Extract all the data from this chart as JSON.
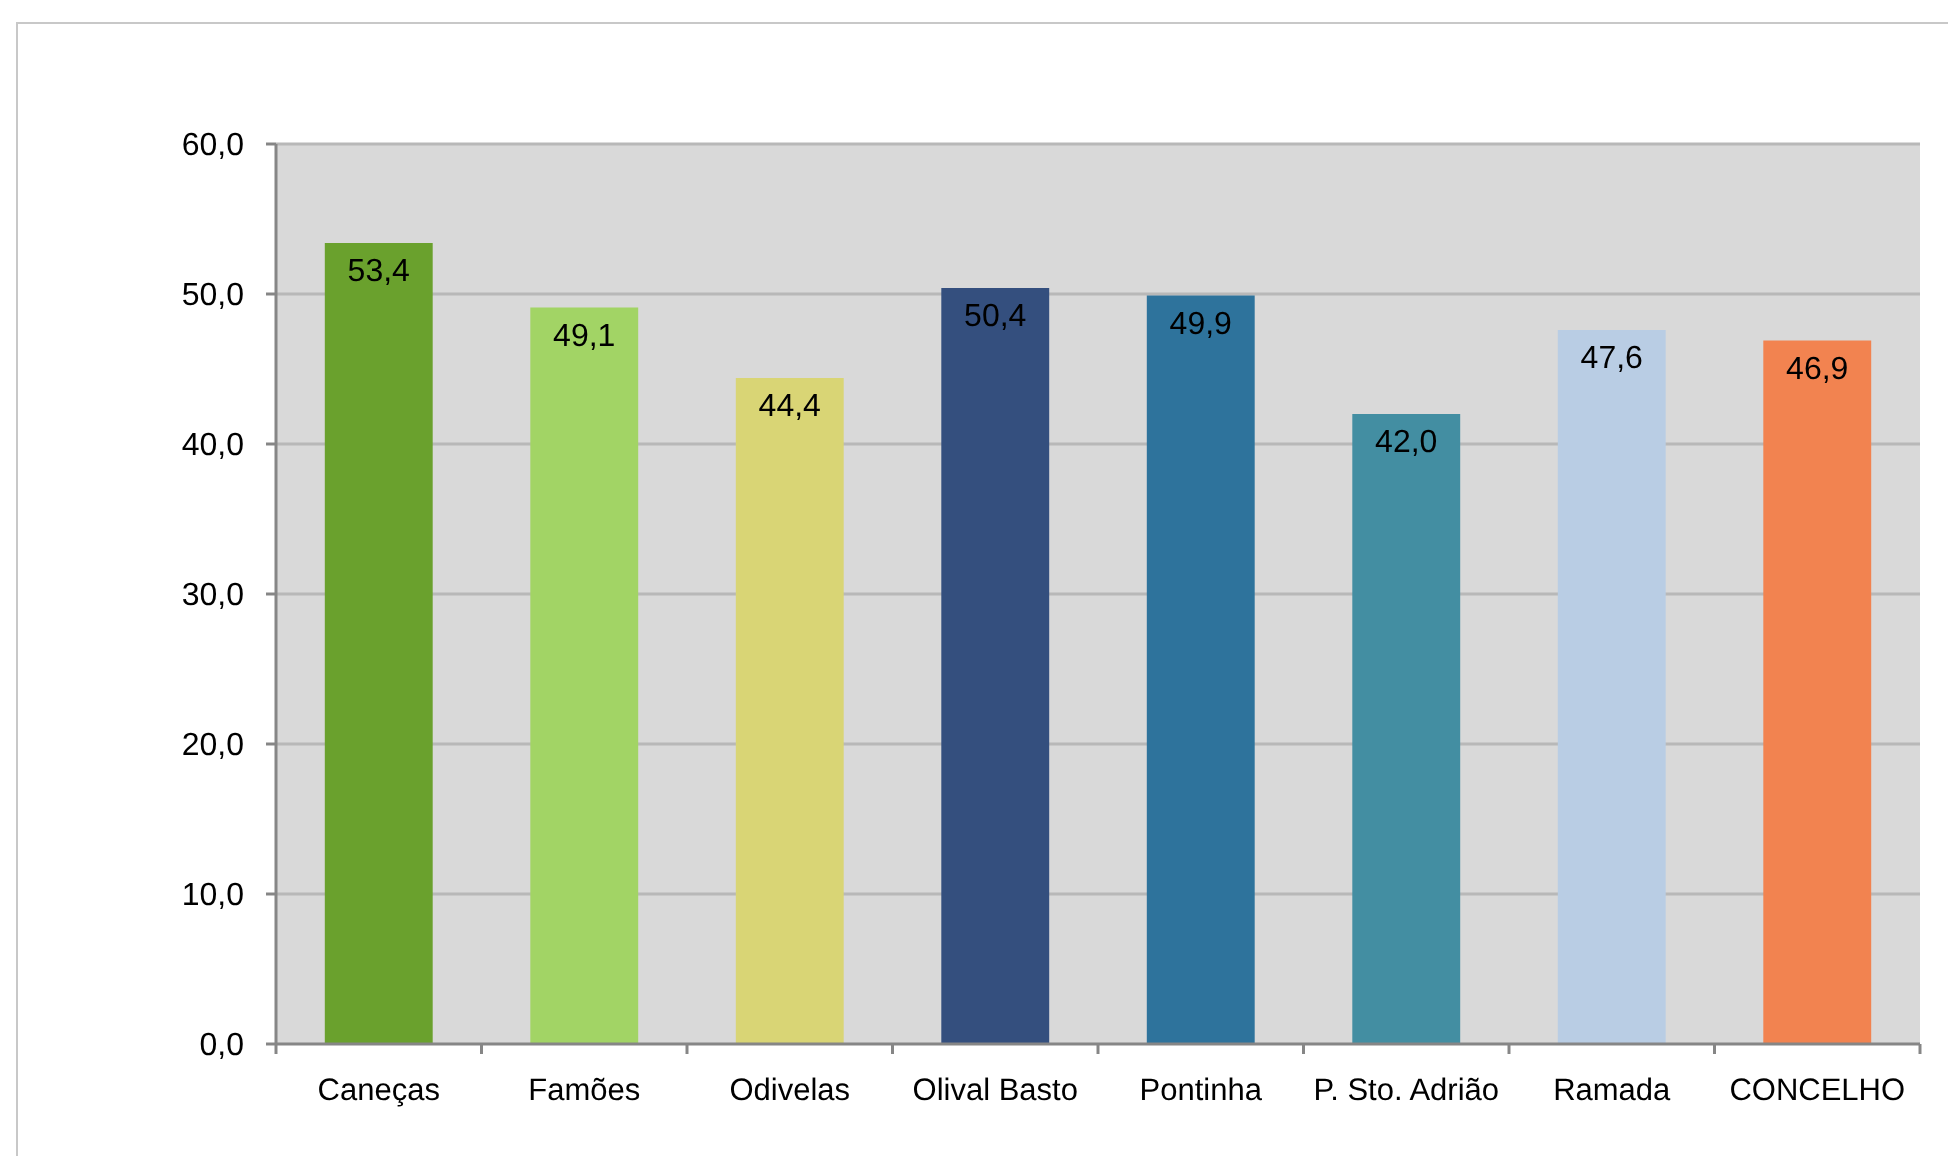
{
  "chart_data": {
    "type": "bar",
    "categories": [
      "Caneças",
      "Famões",
      "Odivelas",
      "Olival Basto",
      "Pontinha",
      "P. Sto. Adrião",
      "Ramada",
      "CONCELHO"
    ],
    "values": [
      53.4,
      49.1,
      44.4,
      50.4,
      49.9,
      42.0,
      47.6,
      46.9
    ],
    "colors": [
      "#6aa12d",
      "#a2d465",
      "#d9d575",
      "#344f7e",
      "#2e739c",
      "#438ea2",
      "#b9cde4",
      "#f28350"
    ],
    "value_labels": [
      "53,4",
      "49,1",
      "44,4",
      "50,4",
      "49,9",
      "42,0",
      "47,6",
      "46,9"
    ],
    "ylim": [
      0,
      60
    ],
    "yticks": [
      {
        "value": 0,
        "label": "0,0"
      },
      {
        "value": 10,
        "label": "10,0"
      },
      {
        "value": 20,
        "label": "20,0"
      },
      {
        "value": 30,
        "label": "30,0"
      },
      {
        "value": 40,
        "label": "40,0"
      },
      {
        "value": 50,
        "label": "50,0"
      },
      {
        "value": 60,
        "label": "60,0"
      }
    ],
    "grid": "y"
  }
}
